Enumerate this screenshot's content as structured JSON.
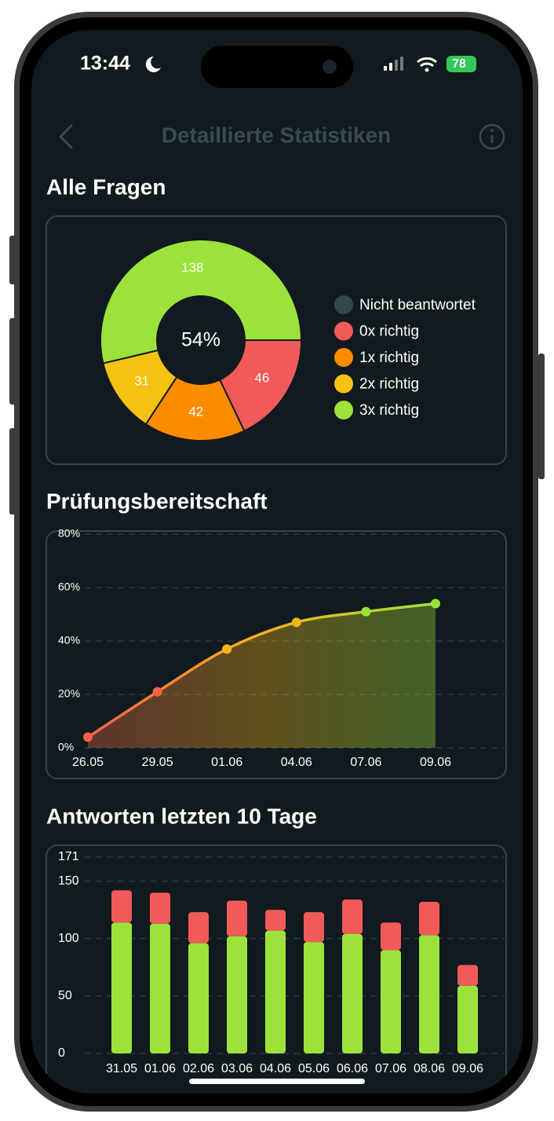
{
  "status": {
    "time": "13:44",
    "battery": "78"
  },
  "header": {
    "title": "Detaillierte Statistiken"
  },
  "chart_data": [
    {
      "type": "donut",
      "title": "Alle Fragen",
      "center_label": "54%",
      "categories": [
        "Nicht beantwortet",
        "0x richtig",
        "1x richtig",
        "2x richtig",
        "3x richtig"
      ],
      "values": [
        0,
        46,
        42,
        31,
        138
      ],
      "colors": [
        "#37474f",
        "#f25a5a",
        "#fb8c00",
        "#f5c211",
        "#9be33a"
      ]
    },
    {
      "type": "line",
      "title": "Prüfungsbereitschaft",
      "categories": [
        "26.05",
        "29.05",
        "01.06",
        "04.06",
        "07.06",
        "09.06"
      ],
      "values": [
        4,
        21,
        37,
        47,
        51,
        54
      ],
      "gradient": [
        "#f26349",
        "#f5b51a",
        "#9be33a"
      ],
      "ylim": [
        0,
        80
      ],
      "yticks": [
        {
          "value": 0,
          "label": "0%"
        },
        {
          "value": 20,
          "label": "20%"
        },
        {
          "value": 40,
          "label": "40%"
        },
        {
          "value": 60,
          "label": "60%"
        },
        {
          "value": 80,
          "label": "80%"
        }
      ],
      "grid": true
    },
    {
      "type": "stacked_bar",
      "title": "Antworten letzten 10 Tage",
      "categories": [
        "31.05",
        "01.06",
        "02.06",
        "03.06",
        "04.06",
        "05.06",
        "06.06",
        "07.06",
        "08.06",
        "09.06"
      ],
      "series": [
        {
          "color": "#9be33a",
          "values": [
            114,
            113,
            96,
            102,
            107,
            97,
            104,
            90,
            103,
            59
          ]
        },
        {
          "color": "#f25a5a",
          "values": [
            28,
            27,
            27,
            31,
            18,
            26,
            30,
            24,
            29,
            18
          ]
        }
      ],
      "ylim": [
        0,
        171
      ],
      "yticks": [
        0,
        50,
        100,
        150,
        171
      ],
      "grid": true
    }
  ]
}
